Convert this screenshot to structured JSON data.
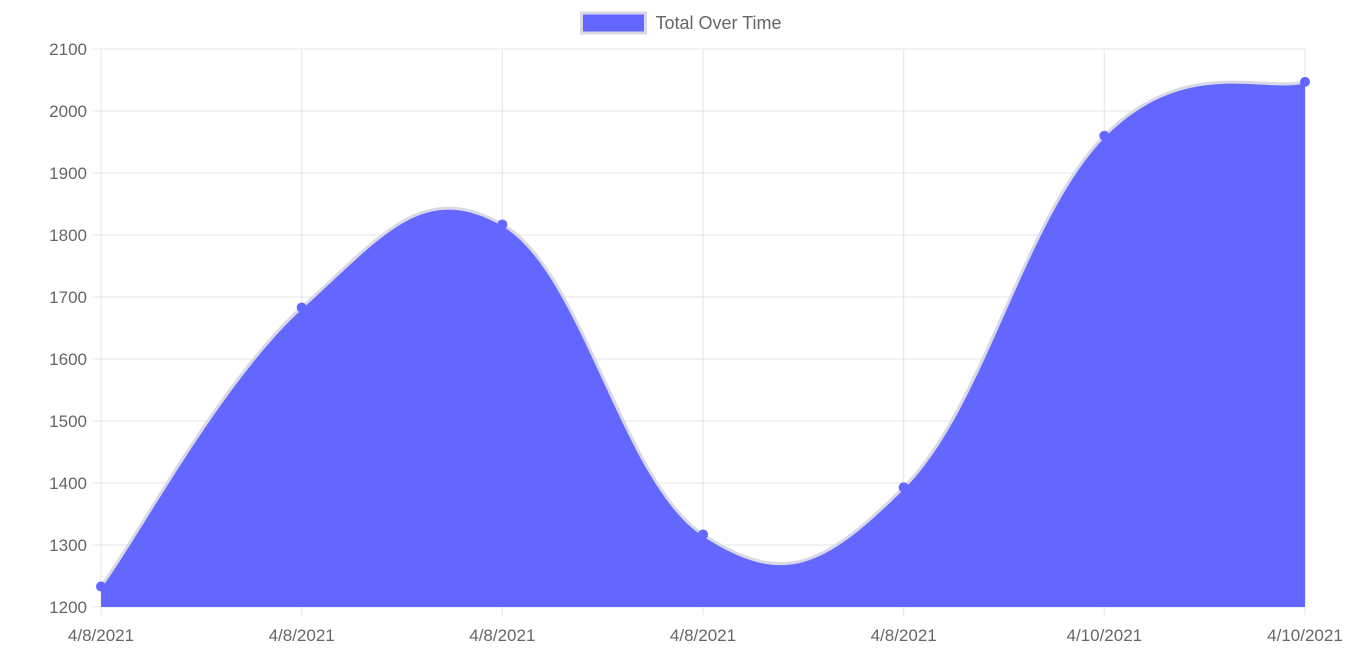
{
  "chart_data": {
    "type": "area",
    "title": "",
    "xlabel": "",
    "ylabel": "",
    "legend": {
      "position": "top-center",
      "label": "Total Over Time"
    },
    "categories": [
      "4/8/2021",
      "4/8/2021",
      "4/8/2021",
      "4/8/2021",
      "4/8/2021",
      "4/10/2021",
      "4/10/2021"
    ],
    "series": [
      {
        "name": "Total Over Time",
        "values": [
          1233,
          1683,
          1817,
          1317,
          1393,
          1960,
          2047
        ]
      }
    ],
    "ylim": [
      1200,
      2100
    ],
    "yticks": [
      1200,
      1300,
      1400,
      1500,
      1600,
      1700,
      1800,
      1900,
      2000,
      2100
    ],
    "grid": true,
    "smooth": true,
    "colors": {
      "fill": "#6366ff",
      "line": "#d8d8e6",
      "point": "#6366ff",
      "grid": "#e5e5e5",
      "text": "#666666"
    }
  }
}
